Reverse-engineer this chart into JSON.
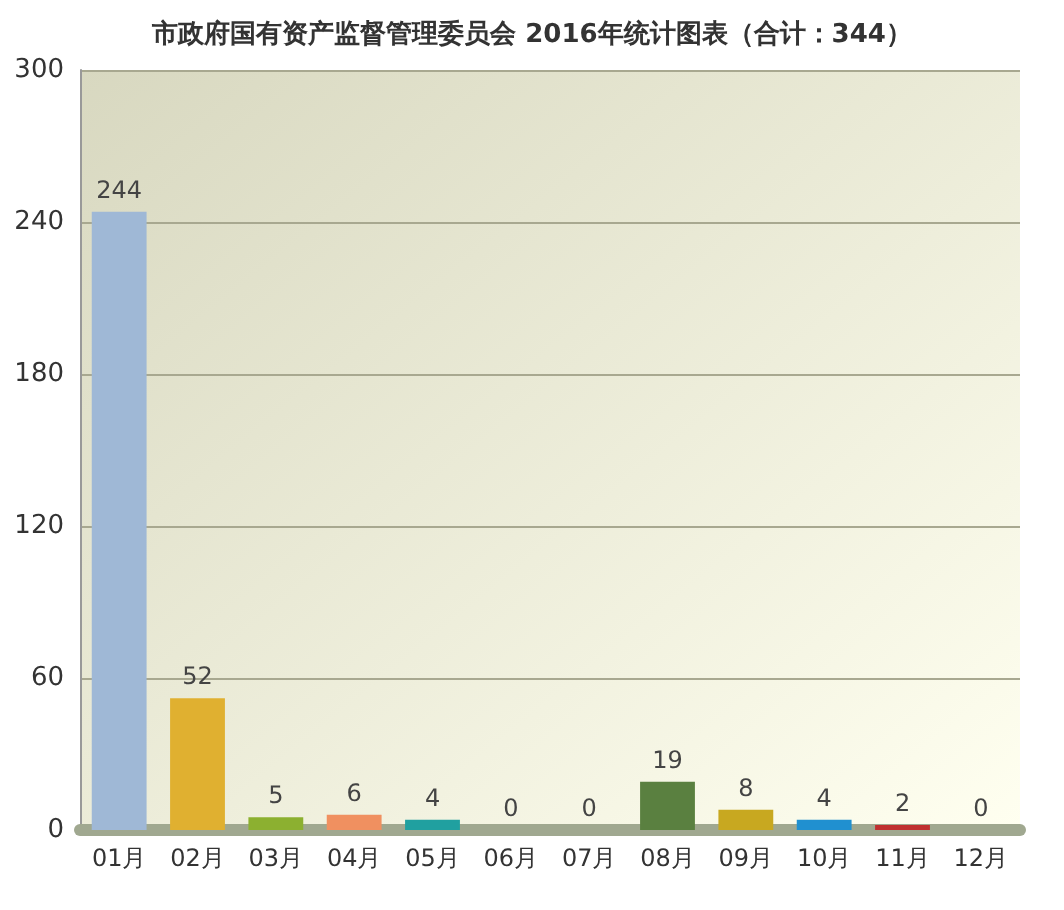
{
  "chart_data": {
    "type": "bar",
    "title": "市政府国有资产监督管理委员会 2016年统计图表（合计：344）",
    "categories": [
      "01月",
      "02月",
      "03月",
      "04月",
      "05月",
      "06月",
      "07月",
      "08月",
      "09月",
      "10月",
      "11月",
      "12月"
    ],
    "values": [
      244,
      52,
      5,
      6,
      4,
      0,
      0,
      19,
      8,
      4,
      2,
      0
    ],
    "colors": [
      "#9fb8d6",
      "#e0b030",
      "#8cb030",
      "#f09060",
      "#20a0a0",
      "#e06060",
      "#9a60b0",
      "#5a8040",
      "#c8a820",
      "#2090d0",
      "#c03030",
      "#b090d0"
    ],
    "ylim": [
      0,
      300
    ],
    "yticks": [
      0,
      60,
      120,
      180,
      240,
      300
    ],
    "grid": "y",
    "data_labels": true
  }
}
